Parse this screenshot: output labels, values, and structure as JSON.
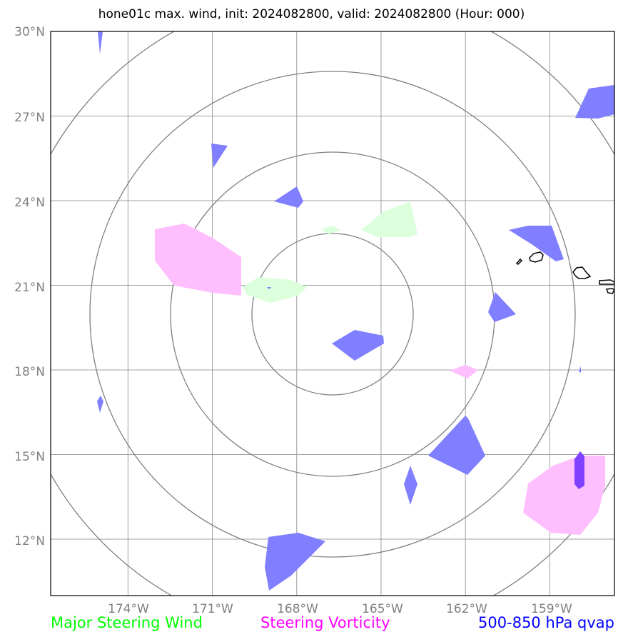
{
  "title": "hone01c max. wind, init: 2024082800, valid: 2024082800 (Hour: 000)",
  "map": {
    "lat_labels": [
      "30°N",
      "27°N",
      "24°N",
      "21°N",
      "18°N",
      "15°N",
      "12°N"
    ],
    "lon_labels": [
      "174°W",
      "171°W",
      "168°W",
      "165°W",
      "162°W",
      "159°W"
    ],
    "lat_values": [
      30,
      27,
      24,
      21,
      18,
      15,
      12
    ],
    "lon_values": [
      -174,
      -171,
      -168,
      -165,
      -162,
      -159
    ],
    "extent": {
      "lon_min": -176.75,
      "lon_max": -156.7,
      "lat_min": 10.0,
      "lat_max": 30.0
    },
    "colors": {
      "wind": "#00ff00",
      "wind_fill": "#dcffdc",
      "vorticity": "#ff00ff",
      "vorticity_fill": "#ffbfff",
      "qvap": "#0000ff",
      "qvap_fill": "#7f7fff",
      "qvap_dark": "#8040ff",
      "grid": "#a0a0a0",
      "range_rings": "#808080"
    }
  },
  "legend": {
    "wind": {
      "label": "Major Steering Wind",
      "color": "#00ff00"
    },
    "vorticity": {
      "label": "Steering Vorticity",
      "color": "#ff00ff"
    },
    "qvap": {
      "label": "500-850 hPa qvap",
      "color": "#0000ff"
    }
  }
}
